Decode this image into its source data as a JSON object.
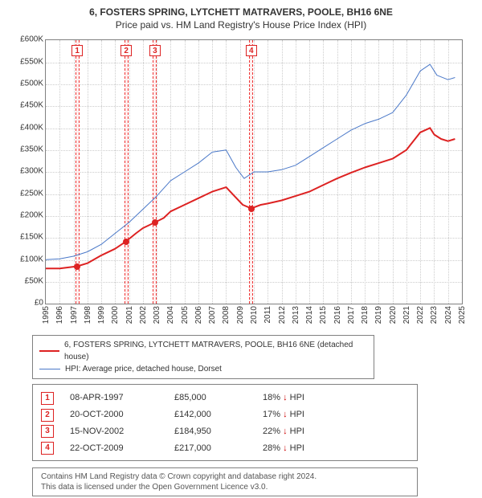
{
  "title": "6, FOSTERS SPRING, LYTCHETT MATRAVERS, POOLE, BH16 6NE",
  "subtitle": "Price paid vs. HM Land Registry's House Price Index (HPI)",
  "chart": {
    "type": "line",
    "x_from": 1995,
    "x_to": 2025,
    "y_from": 0,
    "y_to": 600000,
    "y_tick_step": 50000,
    "y_tick_labels": [
      "£0",
      "£50K",
      "£100K",
      "£150K",
      "£200K",
      "£250K",
      "£300K",
      "£350K",
      "£400K",
      "£450K",
      "£500K",
      "£550K",
      "£600K"
    ],
    "x_ticks": [
      1995,
      1996,
      1997,
      1998,
      1999,
      2000,
      2001,
      2002,
      2003,
      2004,
      2005,
      2006,
      2007,
      2008,
      2009,
      2010,
      2011,
      2012,
      2013,
      2014,
      2015,
      2016,
      2017,
      2018,
      2019,
      2020,
      2021,
      2022,
      2023,
      2024,
      2025
    ],
    "background_color": "#ffffff",
    "grid_color": "#cccccc",
    "border_color": "#808080",
    "series_property": {
      "label": "6, FOSTERS SPRING, LYTCHETT MATRAVERS, POOLE, BH16 6NE (detached house)",
      "color": "#dd2222",
      "line_width": 2,
      "points": [
        [
          1995.0,
          80000
        ],
        [
          1996.0,
          80000
        ],
        [
          1997.27,
          85000
        ],
        [
          1998.0,
          92000
        ],
        [
          1999.0,
          110000
        ],
        [
          2000.0,
          125000
        ],
        [
          2000.8,
          142000
        ],
        [
          2001.5,
          160000
        ],
        [
          2002.0,
          172000
        ],
        [
          2002.87,
          184950
        ],
        [
          2003.5,
          195000
        ],
        [
          2004.0,
          210000
        ],
        [
          2005.0,
          225000
        ],
        [
          2006.0,
          240000
        ],
        [
          2007.0,
          255000
        ],
        [
          2008.0,
          265000
        ],
        [
          2008.6,
          245000
        ],
        [
          2009.2,
          225000
        ],
        [
          2009.81,
          217000
        ],
        [
          2010.5,
          225000
        ],
        [
          2011.0,
          228000
        ],
        [
          2012.0,
          235000
        ],
        [
          2013.0,
          245000
        ],
        [
          2014.0,
          255000
        ],
        [
          2015.0,
          270000
        ],
        [
          2016.0,
          285000
        ],
        [
          2017.0,
          298000
        ],
        [
          2018.0,
          310000
        ],
        [
          2019.0,
          320000
        ],
        [
          2020.0,
          330000
        ],
        [
          2021.0,
          350000
        ],
        [
          2022.0,
          390000
        ],
        [
          2022.7,
          400000
        ],
        [
          2023.0,
          385000
        ],
        [
          2023.5,
          375000
        ],
        [
          2024.0,
          370000
        ],
        [
          2024.5,
          375000
        ]
      ]
    },
    "series_hpi": {
      "label": "HPI: Average price, detached house, Dorset",
      "color": "#4a78c8",
      "line_width": 1,
      "points": [
        [
          1995.0,
          100000
        ],
        [
          1996.0,
          102000
        ],
        [
          1997.0,
          108000
        ],
        [
          1998.0,
          118000
        ],
        [
          1999.0,
          135000
        ],
        [
          2000.0,
          160000
        ],
        [
          2001.0,
          185000
        ],
        [
          2002.0,
          215000
        ],
        [
          2003.0,
          245000
        ],
        [
          2004.0,
          280000
        ],
        [
          2005.0,
          300000
        ],
        [
          2006.0,
          320000
        ],
        [
          2007.0,
          345000
        ],
        [
          2008.0,
          350000
        ],
        [
          2008.7,
          310000
        ],
        [
          2009.3,
          285000
        ],
        [
          2010.0,
          300000
        ],
        [
          2011.0,
          300000
        ],
        [
          2012.0,
          305000
        ],
        [
          2013.0,
          315000
        ],
        [
          2014.0,
          335000
        ],
        [
          2015.0,
          355000
        ],
        [
          2016.0,
          375000
        ],
        [
          2017.0,
          395000
        ],
        [
          2018.0,
          410000
        ],
        [
          2019.0,
          420000
        ],
        [
          2020.0,
          435000
        ],
        [
          2021.0,
          475000
        ],
        [
          2022.0,
          530000
        ],
        [
          2022.7,
          545000
        ],
        [
          2023.2,
          520000
        ],
        [
          2024.0,
          510000
        ],
        [
          2024.5,
          515000
        ]
      ]
    },
    "sales": [
      {
        "n": "1",
        "date": "08-APR-1997",
        "price_label": "£85,000",
        "diff_pct": "18%",
        "diff_dir": "down",
        "hpi_label": "HPI",
        "x": 1997.27,
        "price": 85000,
        "band_half_width": 0.15
      },
      {
        "n": "2",
        "date": "20-OCT-2000",
        "price_label": "£142,000",
        "diff_pct": "17%",
        "diff_dir": "down",
        "hpi_label": "HPI",
        "x": 2000.8,
        "price": 142000,
        "band_half_width": 0.15
      },
      {
        "n": "3",
        "date": "15-NOV-2002",
        "price_label": "£184,950",
        "diff_pct": "22%",
        "diff_dir": "down",
        "hpi_label": "HPI",
        "x": 2002.87,
        "price": 184950,
        "band_half_width": 0.15
      },
      {
        "n": "4",
        "date": "22-OCT-2009",
        "price_label": "£217,000",
        "diff_pct": "28%",
        "diff_dir": "down",
        "hpi_label": "HPI",
        "x": 2009.81,
        "price": 217000,
        "band_half_width": 0.15
      }
    ],
    "sale_band_color": "#ffeeee",
    "sale_band_border": "#ee3333",
    "sale_dot_color": "#dd2222"
  },
  "footer": {
    "line1": "Contains HM Land Registry data © Crown copyright and database right 2024.",
    "line2": "This data is licensed under the Open Government Licence v3.0."
  }
}
